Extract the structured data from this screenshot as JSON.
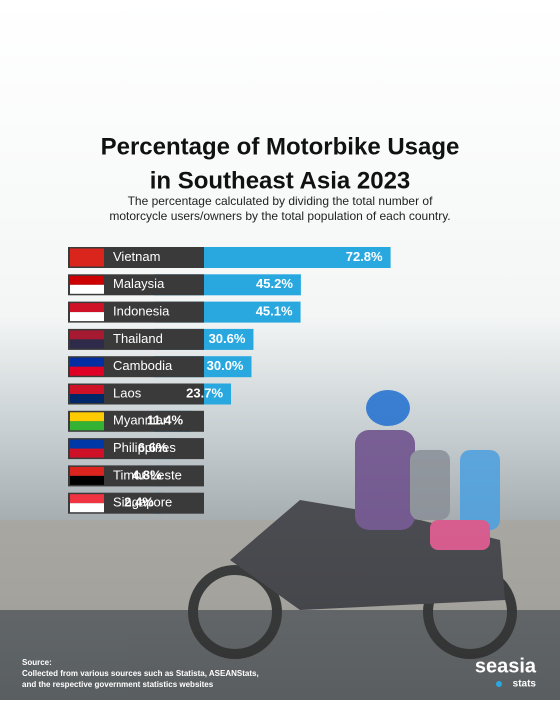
{
  "chart_data": {
    "type": "bar",
    "orientation": "horizontal",
    "title": [
      "Percentage of Motorbike Usage",
      "in Southeast Asia 2023"
    ],
    "subtitle": [
      "The percentage calculated by dividing the total number of",
      "motorcycle users/owners by the total population of each country."
    ],
    "categories": [
      "Vietnam",
      "Malaysia",
      "Indonesia",
      "Thailand",
      "Cambodia",
      "Laos",
      "Myanmar",
      "Philippines",
      "Timor-Leste",
      "Singapore"
    ],
    "values": [
      72.8,
      45.2,
      45.1,
      30.6,
      30.0,
      23.7,
      11.4,
      6.6,
      4.8,
      2.4
    ],
    "value_labels": [
      "72.8%",
      "45.2%",
      "45.1%",
      "30.6%",
      "30.0%",
      "23.7%",
      "11.4%",
      "6.6%",
      "4.8%",
      "2.4%"
    ],
    "color": "#29a8e0",
    "source_title": "Source:",
    "source": [
      "Collected from various sources such as Statista, ASEANStats,",
      "and the respective government statistics websites"
    ],
    "brand": "seasia",
    "brand_sub": "stats"
  }
}
